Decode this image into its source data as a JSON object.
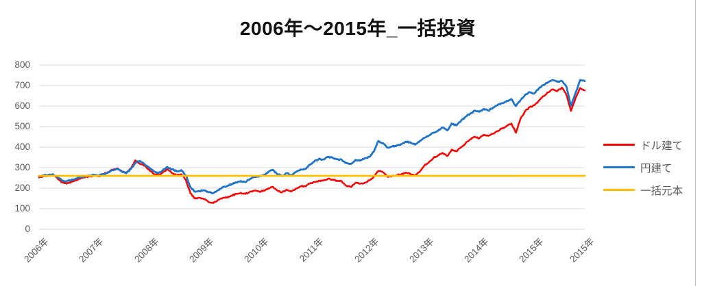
{
  "title": "2006年～2015年_一括投資",
  "colors": {
    "usd_line": "#fe0000",
    "jpy_line": "#1f74c8",
    "principal_line": "#ffc000",
    "gridline": "#d9d9d9",
    "axis_text": "#595959",
    "title_text": "#111111",
    "frame_border": "#c9c9c9"
  },
  "chart_data": {
    "type": "line",
    "title": "2006年～2015年_一括投資",
    "x_unit": "monthly, Jan 2006 - Dec 2015",
    "x_tick_labels": [
      "2006年",
      "2007年",
      "2008年",
      "2009年",
      "2010年",
      "2011年",
      "2012年",
      "2013年",
      "2014年",
      "2015年",
      "2015年"
    ],
    "y_ticks": [
      0,
      100,
      200,
      300,
      400,
      500,
      600,
      700,
      800
    ],
    "ylim": [
      0,
      800
    ],
    "grid": "horizontal",
    "legend_position": "right",
    "series": [
      {
        "name": "ドル建て",
        "color": "#fe0000",
        "values": [
          252,
          258,
          262,
          264,
          248,
          228,
          222,
          230,
          238,
          246,
          252,
          257,
          262,
          257,
          268,
          278,
          290,
          296,
          283,
          272,
          296,
          335,
          318,
          310,
          290,
          270,
          264,
          278,
          292,
          273,
          262,
          268,
          240,
          175,
          150,
          153,
          146,
          132,
          128,
          143,
          152,
          156,
          164,
          172,
          178,
          172,
          183,
          188,
          183,
          189,
          199,
          206,
          188,
          180,
          192,
          184,
          198,
          208,
          209,
          222,
          229,
          236,
          238,
          246,
          242,
          236,
          233,
          212,
          206,
          226,
          222,
          226,
          238,
          256,
          284,
          277,
          255,
          259,
          263,
          268,
          276,
          268,
          262,
          279,
          310,
          326,
          348,
          360,
          372,
          356,
          388,
          379,
          400,
          418,
          438,
          450,
          443,
          460,
          455,
          466,
          478,
          492,
          504,
          515,
          470,
          540,
          575,
          595,
          604,
          626,
          648,
          666,
          681,
          672,
          690,
          655,
          576,
          640,
          688,
          676
        ]
      },
      {
        "name": "円建て",
        "color": "#1f74c8",
        "values": [
          258,
          262,
          265,
          268,
          252,
          238,
          233,
          239,
          246,
          252,
          258,
          262,
          265,
          261,
          269,
          276,
          288,
          293,
          282,
          273,
          293,
          322,
          333,
          317,
          300,
          282,
          273,
          288,
          303,
          292,
          282,
          288,
          262,
          205,
          182,
          186,
          190,
          180,
          176,
          190,
          205,
          210,
          220,
          228,
          235,
          230,
          245,
          255,
          259,
          263,
          279,
          289,
          268,
          259,
          273,
          263,
          279,
          291,
          293,
          313,
          330,
          342,
          340,
          352,
          348,
          341,
          338,
          322,
          318,
          338,
          334,
          346,
          352,
          378,
          430,
          419,
          398,
          403,
          408,
          415,
          426,
          422,
          412,
          429,
          445,
          456,
          470,
          479,
          496,
          481,
          515,
          506,
          528,
          548,
          562,
          578,
          572,
          586,
          578,
          592,
          605,
          614,
          625,
          634,
          600,
          630,
          655,
          668,
          662,
          686,
          702,
          716,
          726,
          718,
          722,
          695,
          601,
          665,
          727,
          721
        ]
      },
      {
        "name": "一括元本",
        "color": "#ffc000",
        "constant_value": 260
      }
    ]
  },
  "legend": {
    "items": [
      {
        "label": "ドル建て"
      },
      {
        "label": "円建て"
      },
      {
        "label": "一括元本"
      }
    ]
  }
}
